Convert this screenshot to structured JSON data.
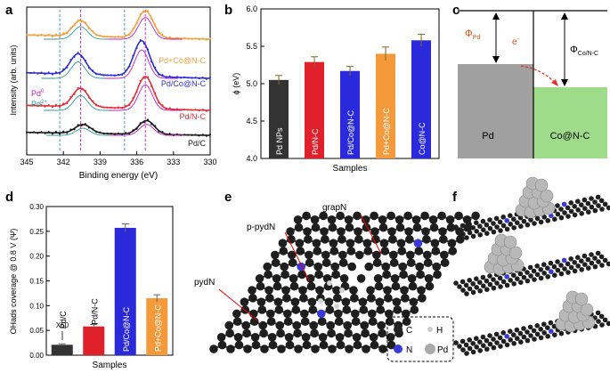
{
  "panel_labels": {
    "a": "a",
    "b": "b",
    "c": "c",
    "d": "d",
    "e": "e",
    "f": "f"
  },
  "colors": {
    "black": "#1a1a1a",
    "red": "#e0303a",
    "blue": "#3030d0",
    "orange": "#f5a040",
    "teal": "#2a9a9a",
    "purple": "#a020c0",
    "gray": "#a0a0a0",
    "green": "#9fdc8a",
    "bar_black": "#333333",
    "bar_red": "#e0202a",
    "bar_blue": "#2a2adc",
    "bar_orange": "#f59a3a"
  },
  "chart_data": [
    {
      "id": "a",
      "type": "line",
      "title": "",
      "xlabel": "Binding energy (eV)",
      "ylabel": "Intensity (arb. units)",
      "xlim": [
        345,
        330
      ],
      "x_ticks": [
        "345",
        "342",
        "339",
        "336",
        "333",
        "330"
      ],
      "dashed_lines_ev": [
        342.3,
        340.6,
        337.0,
        335.3
      ],
      "series": [
        {
          "name": "Pd+Co@N-C",
          "color": "#f5a040",
          "peaks": [
            {
              "pos": 340.6,
              "h": 0.55
            },
            {
              "pos": 335.3,
              "h": 0.95
            }
          ]
        },
        {
          "name": "Pd/Co@N-C",
          "color": "#3030d0",
          "peaks": [
            {
              "pos": 340.8,
              "h": 0.55
            },
            {
              "pos": 335.6,
              "h": 0.95
            }
          ]
        },
        {
          "name": "Pd/N-C",
          "color": "#e0303a",
          "peaks": [
            {
              "pos": 340.6,
              "h": 0.55
            },
            {
              "pos": 335.3,
              "h": 0.95
            }
          ]
        },
        {
          "name": "Pd/C",
          "color": "#1a1a1a",
          "peaks": [
            {
              "pos": 340.4,
              "h": 0.45
            },
            {
              "pos": 335.2,
              "h": 0.7
            }
          ]
        }
      ],
      "legend": {
        "pd0": "Pd",
        "pd0_sup": "0",
        "pd2": "Pd",
        "pd2_sup": "2+"
      }
    },
    {
      "id": "b",
      "type": "bar",
      "xlabel": "Samples",
      "ylabel": "ϕ (eV)",
      "ylim": [
        4.0,
        6.0
      ],
      "y_ticks": [
        "4.0",
        "4.5",
        "5.0",
        "5.5",
        "6.0"
      ],
      "categories": [
        "Pd NPs",
        "Pd/N-C",
        "Pd/Co@N-C",
        "Pd+Co@N-C",
        "Co@N-C"
      ],
      "values": [
        5.05,
        5.29,
        5.17,
        5.4,
        5.58
      ],
      "errors": [
        0.06,
        0.07,
        0.06,
        0.09,
        0.08
      ]
    },
    {
      "id": "d",
      "type": "bar",
      "xlabel": "Samples",
      "ylabel": "OHads coverage @ 0.8 V (Ψ)",
      "ylim": [
        0.0,
        0.3
      ],
      "y_ticks": [
        "0.00",
        "0.05",
        "0.10",
        "0.15",
        "0.20",
        "0.25",
        "0.30"
      ],
      "categories": [
        "Pd/C",
        "Pd/N-C",
        "Pd/Co@N-C",
        "Pd+Co@N-C"
      ],
      "values": [
        0.021,
        0.058,
        0.257,
        0.115
      ],
      "errors": [
        0.002,
        0.004,
        0.008,
        0.007
      ],
      "annotation": "X50"
    }
  ],
  "panel_c": {
    "phi_pd": "Φ",
    "phi_pd_sub": "Pd",
    "phi_co": "Φ",
    "phi_co_sub": "Co/N-C",
    "electron": "e",
    "electron_sup": "-",
    "left_label": "Pd",
    "right_label": "Co@N-C"
  },
  "panel_e": {
    "label_grapN": "grapN",
    "label_ppydN": "p-pydN",
    "label_pydN": "pydN",
    "legend": {
      "C": "C",
      "H": "H",
      "N": "N",
      "Pd": "Pd"
    }
  }
}
